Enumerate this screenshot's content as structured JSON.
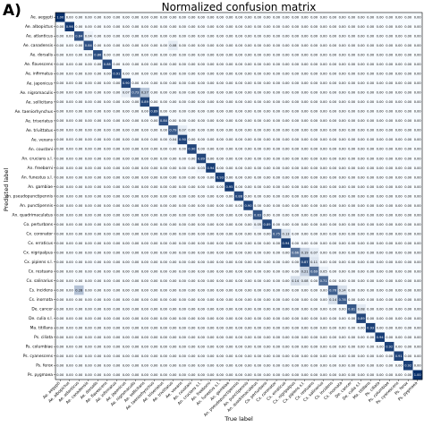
{
  "panel_label": "A)",
  "chart_data": {
    "type": "heatmap",
    "title": "Normalized confusion matrix",
    "xlabel": "True label",
    "ylabel": "Predicted label",
    "color_scale": [
      "#f7fbff",
      "#08306b"
    ],
    "value_range": [
      0,
      1
    ],
    "labels": [
      "Ae. aegypti",
      "Ae. albopictus",
      "Ae. atlanticus",
      "Ae. canadensis",
      "Ae. dorsalis",
      "Ae. flavescens",
      "Ae. infirmatus",
      "Ae. japonicus",
      "Ae. nigromaculis",
      "Ae. sollicitans",
      "Ae. taeniorhynchus",
      "Ae. triseriatus",
      "Ae. trivittatus",
      "Ae. vexans",
      "An. coustani",
      "An. crucians s.l.",
      "An. freeborni",
      "An. funestus s.l.",
      "An. gambiae",
      "An. pseudopunctipennis",
      "An. punctipennis",
      "An. quadrimaculatus",
      "Co. perturbans",
      "Cx. coronator",
      "Cx. erraticus",
      "Cx. nigripalpus",
      "Cx. pipiens s.l.",
      "Cx. restuans",
      "Cx. salinarius",
      "Cs. incidens",
      "Cs. inornata",
      "De. cancer",
      "De. culia s.l.",
      "Ma. titillans",
      "Ps. ciliata",
      "Ps. columbiae",
      "Ps. cyanescens",
      "Ps. ferox",
      "Ps. pygmaea"
    ],
    "diagonal": [
      1.0,
      0.96,
      0.84,
      0.84,
      0.86,
      0.88,
      0.91,
      0.9,
      0.73,
      0.89,
      0.89,
      0.84,
      0.79,
      0.9,
      0.9,
      0.89,
      0.94,
      0.93,
      0.95,
      0.88,
      0.9,
      0.83,
      0.89,
      0.75,
      0.94,
      0.66,
      0.87,
      0.69,
      0.71,
      0.76,
      0.78,
      0.81,
      0.89,
      0.93,
      0.94,
      0.92,
      0.91,
      0.92,
      1.0
    ],
    "off_diagonal": [
      {
        "row": 8,
        "col": 9,
        "value": 0.27
      },
      {
        "row": 8,
        "col": 7,
        "value": 0.07
      },
      {
        "row": 2,
        "col": 3,
        "value": 0.04
      },
      {
        "row": 3,
        "col": 12,
        "value": 0.08
      },
      {
        "row": 12,
        "col": 13,
        "value": 0.07
      },
      {
        "row": 23,
        "col": 24,
        "value": 0.13
      },
      {
        "row": 25,
        "col": 26,
        "value": 0.19
      },
      {
        "row": 25,
        "col": 27,
        "value": 0.07
      },
      {
        "row": 26,
        "col": 27,
        "value": 0.11
      },
      {
        "row": 27,
        "col": 26,
        "value": 0.21
      },
      {
        "row": 27,
        "col": 28,
        "value": 0.05
      },
      {
        "row": 28,
        "col": 25,
        "value": 0.14
      },
      {
        "row": 28,
        "col": 26,
        "value": 0.08
      },
      {
        "row": 29,
        "col": 2,
        "value": 0.28
      },
      {
        "row": 29,
        "col": 30,
        "value": 0.14
      },
      {
        "row": 30,
        "col": 29,
        "value": 0.14
      },
      {
        "row": 31,
        "col": 32,
        "value": 0.08
      },
      {
        "row": 22,
        "col": 21,
        "value": 0.05
      },
      {
        "row": 13,
        "col": 12,
        "value": 0.04
      },
      {
        "row": 16,
        "col": 15,
        "value": 0.03
      }
    ]
  }
}
